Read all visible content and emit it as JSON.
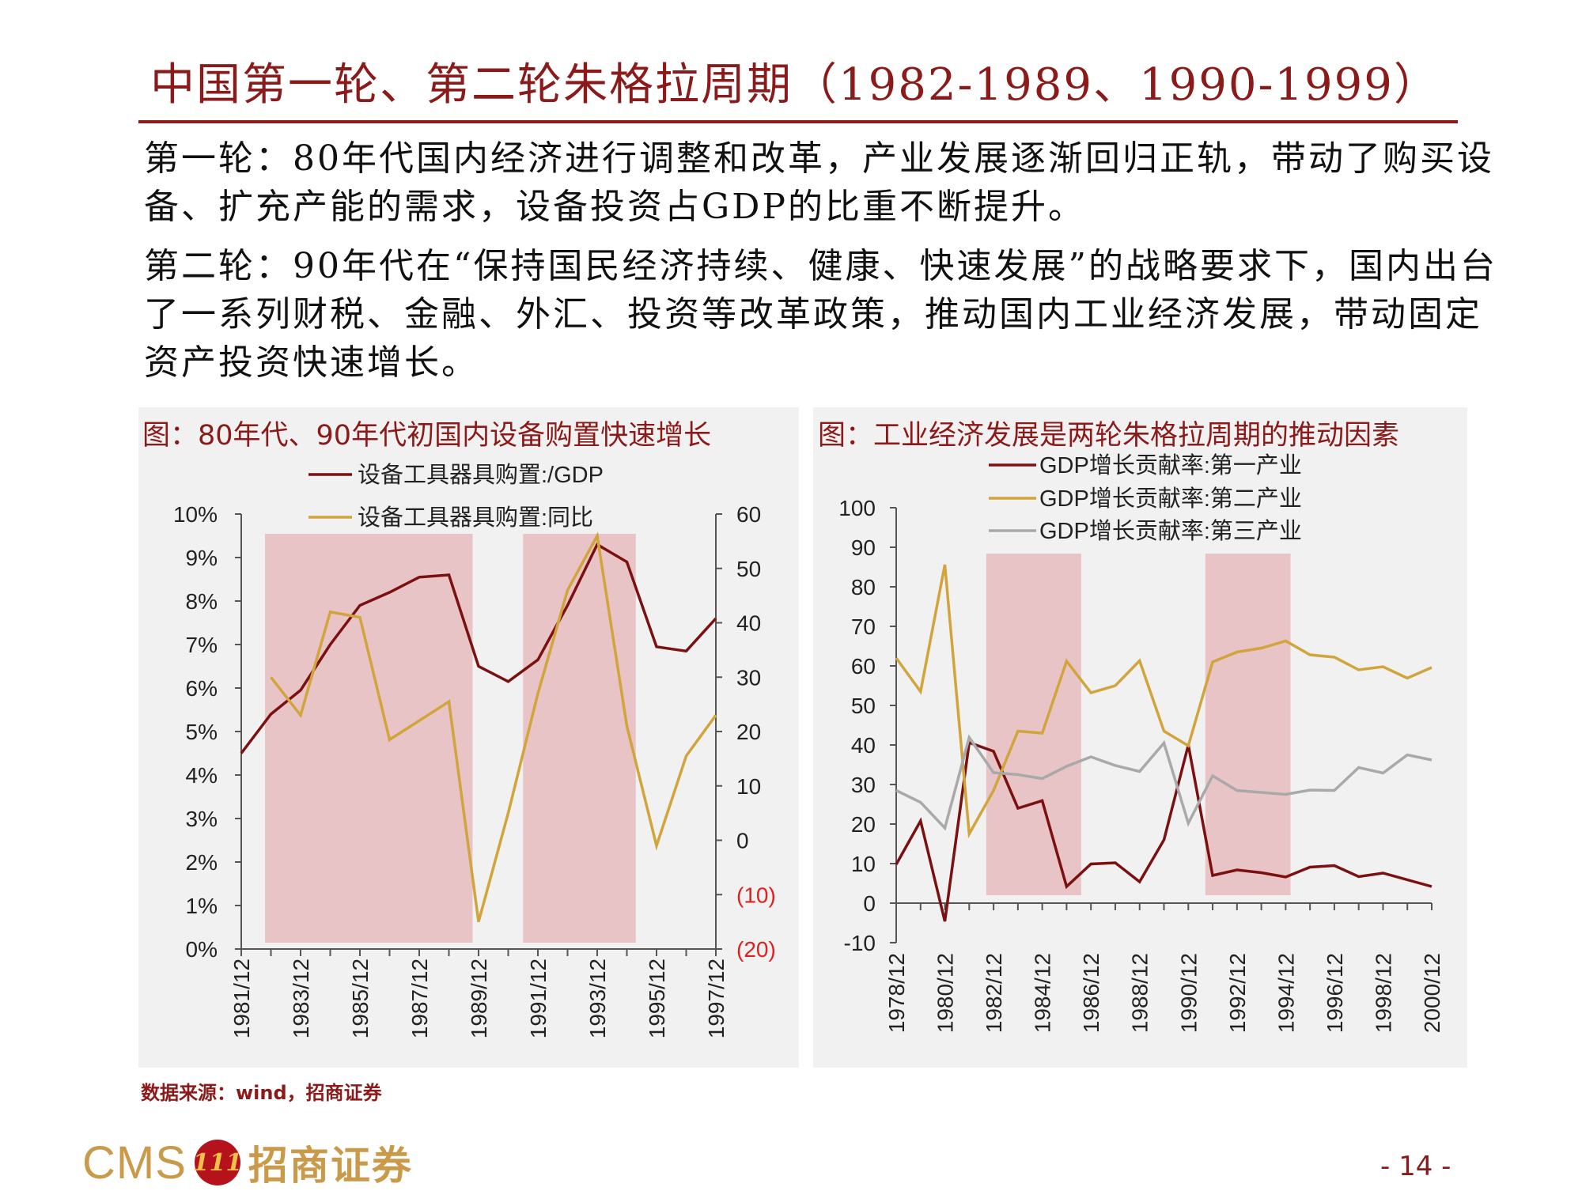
{
  "slide": {
    "title": "中国第一轮、第二轮朱格拉周期（1982-1989、1990-1999）",
    "paragraph1": "第一轮：80年代国内经济进行调整和改革，产业发展逐渐回归正轨，带动了购买设备、扩充产能的需求，设备投资占GDP的比重不断提升。",
    "paragraph2": "第二轮：90年代在“保持国民经济持续、健康、快速发展”的战略要求下，国内出台了一系列财税、金融、外汇、投资等改革政策，推动国内工业经济发展，带动固定资产投资快速增长。",
    "source": "数据来源：wind，招商证券",
    "page_number": "- 14 -",
    "logo_text": "CMS",
    "logo_mark": "111",
    "logo_name": "招商证券"
  },
  "colors": {
    "dark_red": "#7a1010",
    "gold": "#d1a43c",
    "gray": "#a9a9a9",
    "shade": "#e9c4c6",
    "title_red": "#8b1a1a",
    "neg_red": "#e02020"
  },
  "chart_data": [
    {
      "type": "line",
      "title": "图：80年代、90年代初国内设备购置快速增长",
      "x_tick_labels": [
        "1981/12",
        "1983/12",
        "1985/12",
        "1987/12",
        "1989/12",
        "1991/12",
        "1993/12",
        "1995/12",
        "1997/12"
      ],
      "y_left_ticks": [
        "0%",
        "1%",
        "2%",
        "3%",
        "4%",
        "5%",
        "6%",
        "7%",
        "8%",
        "9%",
        "10%"
      ],
      "y_left_range": [
        0,
        10
      ],
      "y_right_ticks": [
        "(20)",
        "(10)",
        "0",
        "10",
        "20",
        "30",
        "40",
        "50",
        "60"
      ],
      "y_right_range": [
        -20,
        60
      ],
      "shaded_periods": [
        [
          1981.8,
          1988.8
        ],
        [
          1990.5,
          1994.3
        ]
      ],
      "series": [
        {
          "name": "设备工具器具购置:/GDP",
          "axis": "left",
          "x": [
            1981,
            1982,
            1983,
            1984,
            1985,
            1986,
            1987,
            1988,
            1989,
            1990,
            1991,
            1992,
            1993,
            1994,
            1995,
            1996,
            1997
          ],
          "values": [
            4.5,
            5.4,
            5.95,
            7.0,
            7.9,
            8.2,
            8.55,
            8.6,
            6.5,
            6.15,
            6.65,
            7.9,
            9.3,
            8.9,
            6.95,
            6.85,
            7.6
          ]
        },
        {
          "name": "设备工具器具购置:同比",
          "axis": "right",
          "x": [
            1982,
            1983,
            1984,
            1985,
            1986,
            1987,
            1988,
            1989,
            1990,
            1991,
            1992,
            1993,
            1994,
            1995,
            1996,
            1997
          ],
          "values": [
            30,
            23,
            42,
            41,
            18.5,
            22,
            25.5,
            -15,
            5,
            27,
            46,
            56,
            21,
            -1,
            15.5,
            23
          ]
        }
      ]
    },
    {
      "type": "line",
      "title": "图：工业经济发展是两轮朱格拉周期的推动因素",
      "x_tick_labels": [
        "1978/12",
        "1980/12",
        "1982/12",
        "1984/12",
        "1986/12",
        "1988/12",
        "1990/12",
        "1992/12",
        "1994/12",
        "1996/12",
        "1998/12",
        "2000/12"
      ],
      "y_ticks": [
        "-10",
        "0",
        "10",
        "20",
        "30",
        "40",
        "50",
        "60",
        "70",
        "80",
        "90",
        "100"
      ],
      "y_range": [
        -10,
        100
      ],
      "shaded_periods": [
        [
          1981.7,
          1985.6
        ],
        [
          1990.7,
          1994.2
        ]
      ],
      "x": [
        1978,
        1979,
        1980,
        1981,
        1982,
        1983,
        1984,
        1985,
        1986,
        1987,
        1988,
        1989,
        1990,
        1991,
        1992,
        1993,
        1994,
        1995,
        1996,
        1997,
        1998,
        1999,
        2000
      ],
      "series": [
        {
          "name": "GDP增长贡献率:第一产业",
          "values": [
            9.8,
            20.8,
            -4.6,
            40.6,
            38.4,
            24.0,
            25.9,
            4.2,
            9.9,
            10.2,
            5.4,
            16.0,
            40.0,
            7.0,
            8.4,
            7.7,
            6.6,
            9.1,
            9.5,
            6.7,
            7.6,
            5.9,
            4.2
          ]
        },
        {
          "name": "GDP增长贡献率:第二产业",
          "values": [
            62,
            53.5,
            85.6,
            17.5,
            28.5,
            43.5,
            43.0,
            61.2,
            53.2,
            55.0,
            61.3,
            43.5,
            39.8,
            61.0,
            63.5,
            64.5,
            66.3,
            62.8,
            62.2,
            59.0,
            59.8,
            56.9,
            59.6
          ]
        },
        {
          "name": "GDP增长贡献率:第三产业",
          "values": [
            28.5,
            25.5,
            19.0,
            41.9,
            33.0,
            32.5,
            31.5,
            34.6,
            37.0,
            34.8,
            33.3,
            40.5,
            20.2,
            32.2,
            28.5,
            28.0,
            27.5,
            28.6,
            28.5,
            34.3,
            32.9,
            37.5,
            36.2
          ]
        }
      ]
    }
  ]
}
